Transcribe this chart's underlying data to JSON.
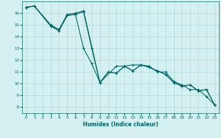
{
  "title": "",
  "xlabel": "Humidex (Indice chaleur)",
  "ylabel": "",
  "bg_color": "#d4f0f0",
  "grid_color": "#b0d8d8",
  "line_color": "#006666",
  "xlim": [
    -0.5,
    23.5
  ],
  "ylim": [
    7.5,
    17.0
  ],
  "yticks": [
    8,
    9,
    10,
    11,
    12,
    13,
    14,
    15,
    16
  ],
  "xticks": [
    0,
    1,
    2,
    3,
    4,
    5,
    6,
    7,
    8,
    9,
    10,
    11,
    12,
    13,
    14,
    15,
    16,
    17,
    18,
    19,
    20,
    21,
    22,
    23
  ],
  "series1_x": [
    0,
    1,
    3,
    4,
    5,
    6,
    7,
    8,
    9,
    10,
    11,
    12,
    13,
    14,
    15,
    16,
    17,
    18,
    19,
    20,
    21,
    22,
    23
  ],
  "series1_y": [
    16.5,
    16.6,
    14.9,
    14.5,
    15.8,
    15.9,
    16.1,
    13.0,
    10.1,
    11.0,
    10.9,
    11.5,
    11.1,
    11.6,
    11.4,
    11.1,
    10.8,
    10.1,
    9.8,
    9.9,
    9.4,
    9.5,
    8.2
  ],
  "series2_x": [
    0,
    1,
    3,
    4,
    5,
    6,
    7,
    9,
    11,
    12,
    13,
    14,
    15,
    16,
    17,
    18,
    19,
    20,
    21,
    22,
    23
  ],
  "series2_y": [
    16.5,
    16.6,
    15.0,
    14.6,
    15.9,
    16.0,
    16.2,
    10.1,
    11.5,
    11.5,
    11.6,
    11.6,
    11.5,
    11.0,
    11.0,
    10.2,
    9.9,
    9.5,
    9.5,
    8.9,
    8.2
  ],
  "series3_x": [
    0,
    1,
    3,
    4,
    5,
    6,
    7,
    8,
    9,
    10,
    11,
    12,
    13,
    14,
    15,
    16,
    17,
    18,
    19,
    20,
    21,
    22,
    23
  ],
  "series3_y": [
    16.5,
    16.6,
    14.9,
    14.6,
    15.8,
    15.9,
    13.0,
    11.7,
    10.1,
    11.0,
    10.9,
    11.5,
    11.1,
    11.6,
    11.4,
    11.1,
    10.8,
    10.1,
    9.8,
    9.9,
    9.4,
    9.5,
    8.2
  ]
}
